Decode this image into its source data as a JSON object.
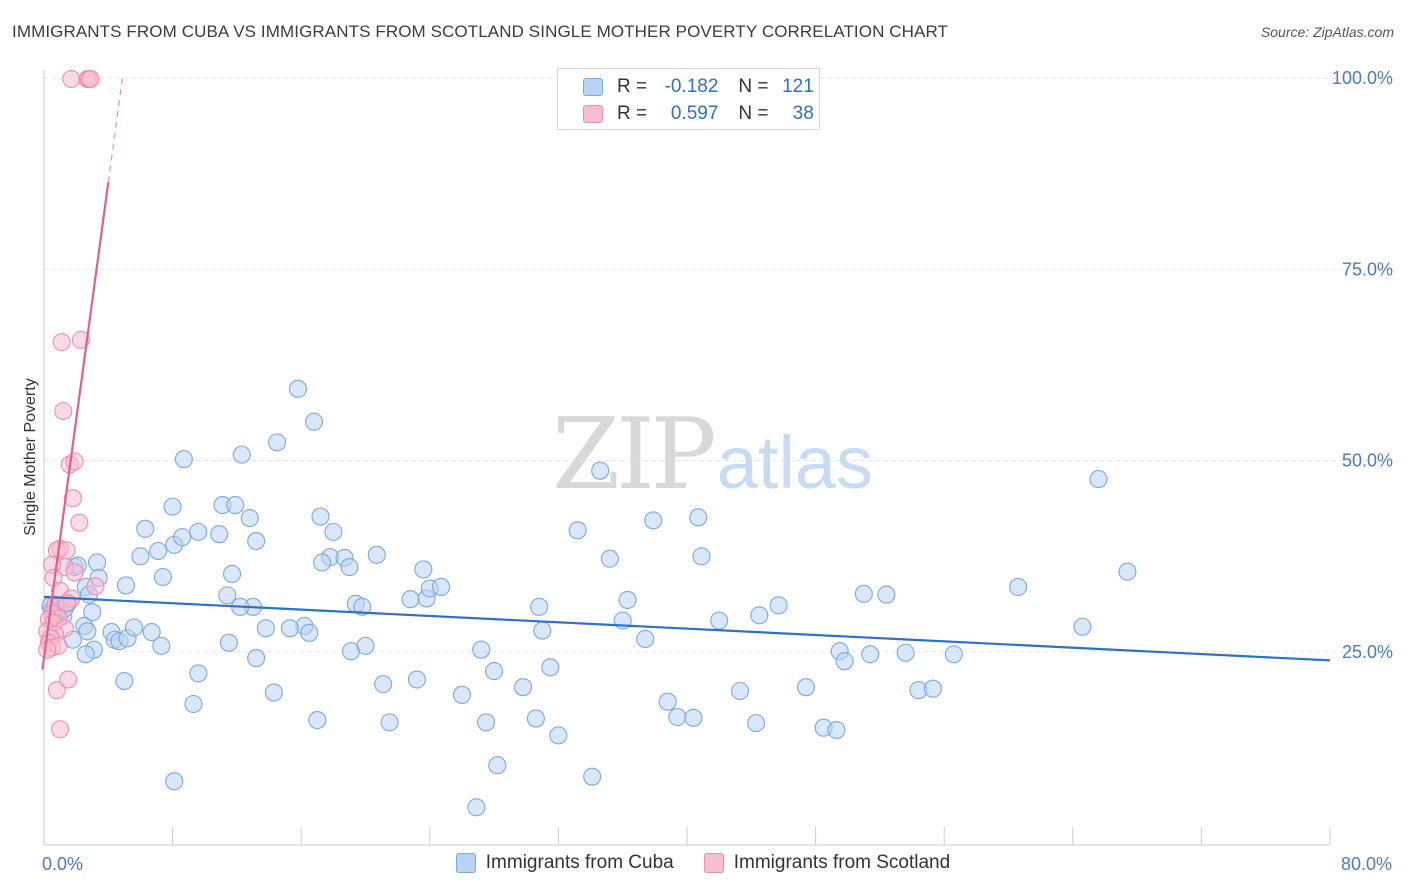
{
  "header": {
    "title": "IMMIGRANTS FROM CUBA VS IMMIGRANTS FROM SCOTLAND SINGLE MOTHER POVERTY CORRELATION CHART",
    "source": "Source: ZipAtlas.com"
  },
  "watermark": {
    "zip": "ZIP",
    "atlas": "atlas"
  },
  "legend_stats": [
    {
      "r_label": "R =",
      "r_value": "-0.182",
      "n_label": "N =",
      "n_value": "121"
    },
    {
      "r_label": "R =",
      "r_value": "0.597",
      "n_label": "N =",
      "n_value": "38"
    }
  ],
  "colors": {
    "cuba_fill": "#b9d3f3",
    "cuba_stroke": "#7aa8e0",
    "cuba_line": "#2f6fcc",
    "scot_fill": "#f6bcd0",
    "scot_stroke": "#ec8fb0",
    "scot_line": "#e0608c",
    "grid": "#e3e3e3",
    "tick_text": "#4a7ac4"
  },
  "chart_data": {
    "type": "scatter",
    "title": "IMMIGRANTS FROM CUBA VS IMMIGRANTS FROM SCOTLAND SINGLE MOTHER POVERTY CORRELATION CHART",
    "xlabel": "",
    "ylabel": "Single Mother Poverty",
    "xlim": [
      0,
      80
    ],
    "ylim": [
      0,
      104
    ],
    "x_tick_labels": [
      {
        "value": 0,
        "label": "0.0%"
      },
      {
        "value": 80,
        "label": "80.0%"
      }
    ],
    "y_tick_labels": [
      {
        "value": 25,
        "label": "25.0%"
      },
      {
        "value": 50,
        "label": "50.0%"
      },
      {
        "value": 75,
        "label": "75.0%"
      },
      {
        "value": 100,
        "label": "100.0%"
      }
    ],
    "grid": true,
    "legend": [
      "Immigrants from Cuba",
      "Immigrants from Scotland"
    ],
    "series": [
      {
        "name": "Immigrants from Cuba",
        "trend": {
          "x0": 0,
          "y0": 32.3,
          "x1": 80,
          "y1": 24.0
        },
        "points": [
          [
            0.4,
            31.1
          ],
          [
            0.5,
            30.6
          ],
          [
            0.7,
            30.3
          ],
          [
            0.8,
            29.9
          ],
          [
            1.0,
            31.2
          ],
          [
            1.2,
            29.8
          ],
          [
            0.9,
            30.5
          ],
          [
            1.3,
            30.8
          ],
          [
            1.5,
            31.5
          ],
          [
            1.9,
            36.2
          ],
          [
            2.1,
            36.4
          ],
          [
            2.6,
            33.6
          ],
          [
            2.8,
            32.6
          ],
          [
            3.3,
            36.8
          ],
          [
            3.4,
            34.8
          ],
          [
            3.0,
            30.3
          ],
          [
            2.5,
            28.5
          ],
          [
            2.7,
            27.8
          ],
          [
            1.8,
            26.7
          ],
          [
            3.1,
            25.4
          ],
          [
            4.2,
            27.7
          ],
          [
            4.4,
            26.7
          ],
          [
            4.7,
            26.5
          ],
          [
            5.2,
            26.9
          ],
          [
            5.6,
            28.3
          ],
          [
            6.7,
            27.7
          ],
          [
            7.3,
            25.9
          ],
          [
            2.6,
            24.8
          ],
          [
            5.1,
            33.8
          ],
          [
            6.0,
            37.6
          ],
          [
            7.1,
            38.3
          ],
          [
            7.4,
            34.9
          ],
          [
            6.3,
            41.2
          ],
          [
            8.1,
            39.1
          ],
          [
            8.6,
            40.1
          ],
          [
            9.6,
            40.8
          ],
          [
            10.9,
            40.5
          ],
          [
            11.7,
            35.3
          ],
          [
            11.4,
            32.5
          ],
          [
            8.0,
            44.1
          ],
          [
            8.7,
            50.3
          ],
          [
            11.1,
            44.3
          ],
          [
            11.9,
            44.3
          ],
          [
            12.3,
            50.9
          ],
          [
            12.8,
            42.6
          ],
          [
            13.2,
            39.6
          ],
          [
            13.0,
            31.0
          ],
          [
            13.8,
            28.2
          ],
          [
            13.2,
            24.3
          ],
          [
            14.3,
            19.8
          ],
          [
            12.2,
            31.0
          ],
          [
            14.5,
            52.5
          ],
          [
            15.8,
            59.5
          ],
          [
            16.8,
            55.2
          ],
          [
            17.2,
            42.8
          ],
          [
            16.2,
            28.5
          ],
          [
            16.5,
            27.6
          ],
          [
            17.8,
            37.5
          ],
          [
            17.3,
            36.8
          ],
          [
            18.7,
            37.4
          ],
          [
            19.0,
            36.2
          ],
          [
            19.4,
            31.4
          ],
          [
            19.8,
            31.0
          ],
          [
            20.7,
            37.8
          ],
          [
            21.1,
            20.9
          ],
          [
            21.5,
            15.9
          ],
          [
            22.8,
            32.0
          ],
          [
            23.2,
            21.5
          ],
          [
            23.6,
            35.9
          ],
          [
            23.8,
            32.1
          ],
          [
            24.0,
            33.4
          ],
          [
            24.7,
            33.6
          ],
          [
            26.0,
            19.5
          ],
          [
            27.2,
            25.4
          ],
          [
            27.5,
            15.9
          ],
          [
            28.0,
            22.6
          ],
          [
            28.2,
            10.3
          ],
          [
            29.8,
            20.5
          ],
          [
            30.6,
            16.4
          ],
          [
            30.8,
            31.0
          ],
          [
            31.0,
            27.9
          ],
          [
            31.5,
            23.1
          ],
          [
            32.0,
            14.2
          ],
          [
            33.2,
            41.0
          ],
          [
            34.1,
            8.8
          ],
          [
            34.6,
            48.8
          ],
          [
            35.2,
            37.3
          ],
          [
            36.0,
            29.2
          ],
          [
            36.3,
            31.9
          ],
          [
            37.4,
            26.8
          ],
          [
            37.9,
            42.3
          ],
          [
            38.8,
            18.6
          ],
          [
            39.4,
            16.6
          ],
          [
            40.4,
            16.5
          ],
          [
            40.7,
            42.7
          ],
          [
            40.9,
            37.6
          ],
          [
            42.0,
            29.2
          ],
          [
            43.3,
            20.0
          ],
          [
            44.3,
            15.8
          ],
          [
            44.5,
            29.9
          ],
          [
            45.7,
            31.2
          ],
          [
            47.4,
            20.5
          ],
          [
            48.5,
            15.2
          ],
          [
            49.3,
            14.9
          ],
          [
            49.5,
            25.2
          ],
          [
            49.8,
            23.9
          ],
          [
            51.0,
            32.7
          ],
          [
            51.4,
            24.8
          ],
          [
            52.4,
            32.6
          ],
          [
            53.6,
            25.0
          ],
          [
            54.4,
            20.1
          ],
          [
            55.3,
            20.3
          ],
          [
            56.6,
            24.8
          ],
          [
            60.6,
            33.6
          ],
          [
            64.6,
            28.4
          ],
          [
            65.6,
            47.7
          ],
          [
            67.4,
            35.6
          ],
          [
            18.0,
            40.8
          ],
          [
            19.1,
            25.2
          ],
          [
            20.0,
            25.9
          ],
          [
            17.0,
            16.2
          ],
          [
            11.5,
            26.3
          ],
          [
            26.9,
            4.8
          ],
          [
            5.0,
            21.3
          ],
          [
            9.3,
            18.3
          ],
          [
            8.1,
            8.2
          ],
          [
            9.6,
            22.3
          ],
          [
            15.3,
            28.2
          ]
        ]
      },
      {
        "name": "Immigrants from Scotland",
        "trend": {
          "x0": -0.1,
          "y0": 22.8,
          "x1": 4.0,
          "y1": 86.5
        },
        "trend_dashed": {
          "x0": 4.0,
          "y0": 86.5,
          "x1": 4.9,
          "y1": 100.5
        },
        "points": [
          [
            1.7,
            100.0
          ],
          [
            2.7,
            100.0
          ],
          [
            2.8,
            100.0
          ],
          [
            2.9,
            100.0
          ],
          [
            1.1,
            65.6
          ],
          [
            2.3,
            65.9
          ],
          [
            1.2,
            56.6
          ],
          [
            1.6,
            49.6
          ],
          [
            1.9,
            50.0
          ],
          [
            1.8,
            45.2
          ],
          [
            2.2,
            42.0
          ],
          [
            1.0,
            38.6
          ],
          [
            0.8,
            38.4
          ],
          [
            1.4,
            38.4
          ],
          [
            1.3,
            36.2
          ],
          [
            0.5,
            36.5
          ],
          [
            0.6,
            34.8
          ],
          [
            1.9,
            35.5
          ],
          [
            3.2,
            33.7
          ],
          [
            1.0,
            33.1
          ],
          [
            1.7,
            32.1
          ],
          [
            0.7,
            31.3
          ],
          [
            0.5,
            30.1
          ],
          [
            0.9,
            29.5
          ],
          [
            0.3,
            29.4
          ],
          [
            0.6,
            28.9
          ],
          [
            1.3,
            28.2
          ],
          [
            0.2,
            27.8
          ],
          [
            0.7,
            27.4
          ],
          [
            0.4,
            26.9
          ],
          [
            0.3,
            26.3
          ],
          [
            0.5,
            25.7
          ],
          [
            0.9,
            25.9
          ],
          [
            0.2,
            25.4
          ],
          [
            0.8,
            20.1
          ],
          [
            1.5,
            21.5
          ],
          [
            1.0,
            15.0
          ],
          [
            1.4,
            31.5
          ]
        ]
      }
    ]
  },
  "bottom_legend": {
    "cuba": "Immigrants from Cuba",
    "scotland": "Immigrants from Scotland"
  }
}
